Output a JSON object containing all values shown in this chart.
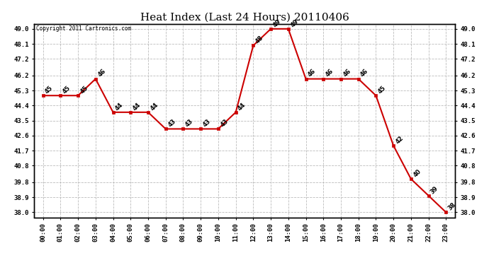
{
  "title": "Heat Index (Last 24 Hours) 20110406",
  "copyright": "Copyright 2011 Cartronics.com",
  "hours": [
    "00:00",
    "01:00",
    "02:00",
    "03:00",
    "04:00",
    "05:00",
    "06:00",
    "07:00",
    "08:00",
    "09:00",
    "10:00",
    "11:00",
    "12:00",
    "13:00",
    "14:00",
    "15:00",
    "16:00",
    "17:00",
    "18:00",
    "19:00",
    "20:00",
    "21:00",
    "22:00",
    "23:00"
  ],
  "y_values": [
    45,
    45,
    45,
    46,
    44,
    44,
    44,
    43,
    43,
    43,
    43,
    44,
    48,
    49,
    49,
    46,
    46,
    46,
    46,
    45,
    42,
    40,
    39,
    38
  ],
  "ylim_min": 37.7,
  "ylim_max": 49.3,
  "yticks": [
    38.0,
    38.9,
    39.8,
    40.8,
    41.7,
    42.6,
    43.5,
    44.4,
    45.3,
    46.2,
    47.2,
    48.1,
    49.0
  ],
  "line_color": "#cc0000",
  "marker_color": "#cc0000",
  "bg_color": "#ffffff",
  "grid_color": "#bbbbbb",
  "title_fontsize": 11,
  "tick_fontsize": 6.5,
  "annot_fontsize": 6.0
}
